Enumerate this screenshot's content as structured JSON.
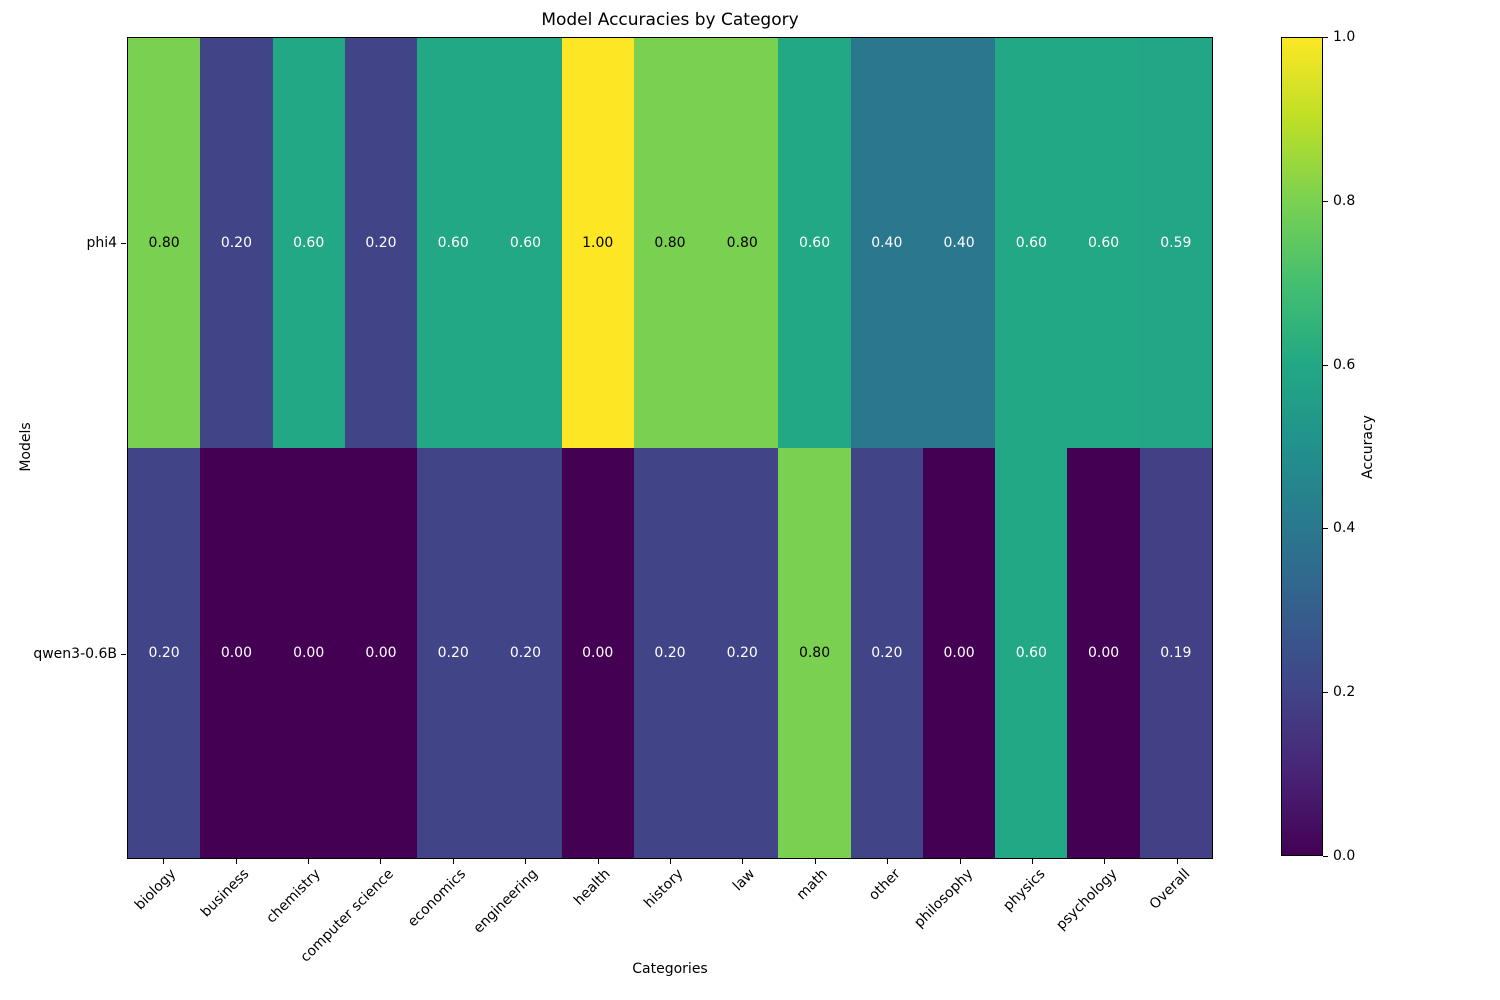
{
  "chart_data": {
    "type": "heatmap",
    "title": "Model Accuracies by Category",
    "xlabel": "Categories",
    "ylabel": "Models",
    "colorbar_label": "Accuracy",
    "colormap": "viridis",
    "vmin": 0.0,
    "vmax": 1.0,
    "categories": [
      "biology",
      "business",
      "chemistry",
      "computer science",
      "economics",
      "engineering",
      "health",
      "history",
      "law",
      "math",
      "other",
      "philosophy",
      "physics",
      "psychology",
      "Overall"
    ],
    "models": [
      "phi4",
      "qwen3-0.6B"
    ],
    "series": [
      {
        "name": "phi4",
        "values": [
          0.8,
          0.2,
          0.6,
          0.2,
          0.6,
          0.6,
          1.0,
          0.8,
          0.8,
          0.6,
          0.4,
          0.4,
          0.6,
          0.6,
          0.59
        ]
      },
      {
        "name": "qwen3-0.6B",
        "values": [
          0.2,
          0.0,
          0.0,
          0.0,
          0.2,
          0.2,
          0.0,
          0.2,
          0.2,
          0.8,
          0.2,
          0.0,
          0.6,
          0.0,
          0.19
        ]
      }
    ],
    "colorbar_ticks": [
      1.0,
      0.8,
      0.6,
      0.4,
      0.2,
      0.0
    ],
    "colorbar_tick_labels": [
      "1.0",
      "0.8",
      "0.6",
      "0.4",
      "0.2",
      "0.0"
    ],
    "colormap_stops": [
      "#440154",
      "#482475",
      "#414487",
      "#355f8d",
      "#2a788e",
      "#21918c",
      "#22a884",
      "#44bf70",
      "#7ad151",
      "#bddf26",
      "#fde725"
    ],
    "annotation_colors": {
      "on_dark": "#ffffff",
      "on_light": "#000000"
    },
    "grid": false,
    "legend_position": "colorbar-right"
  }
}
